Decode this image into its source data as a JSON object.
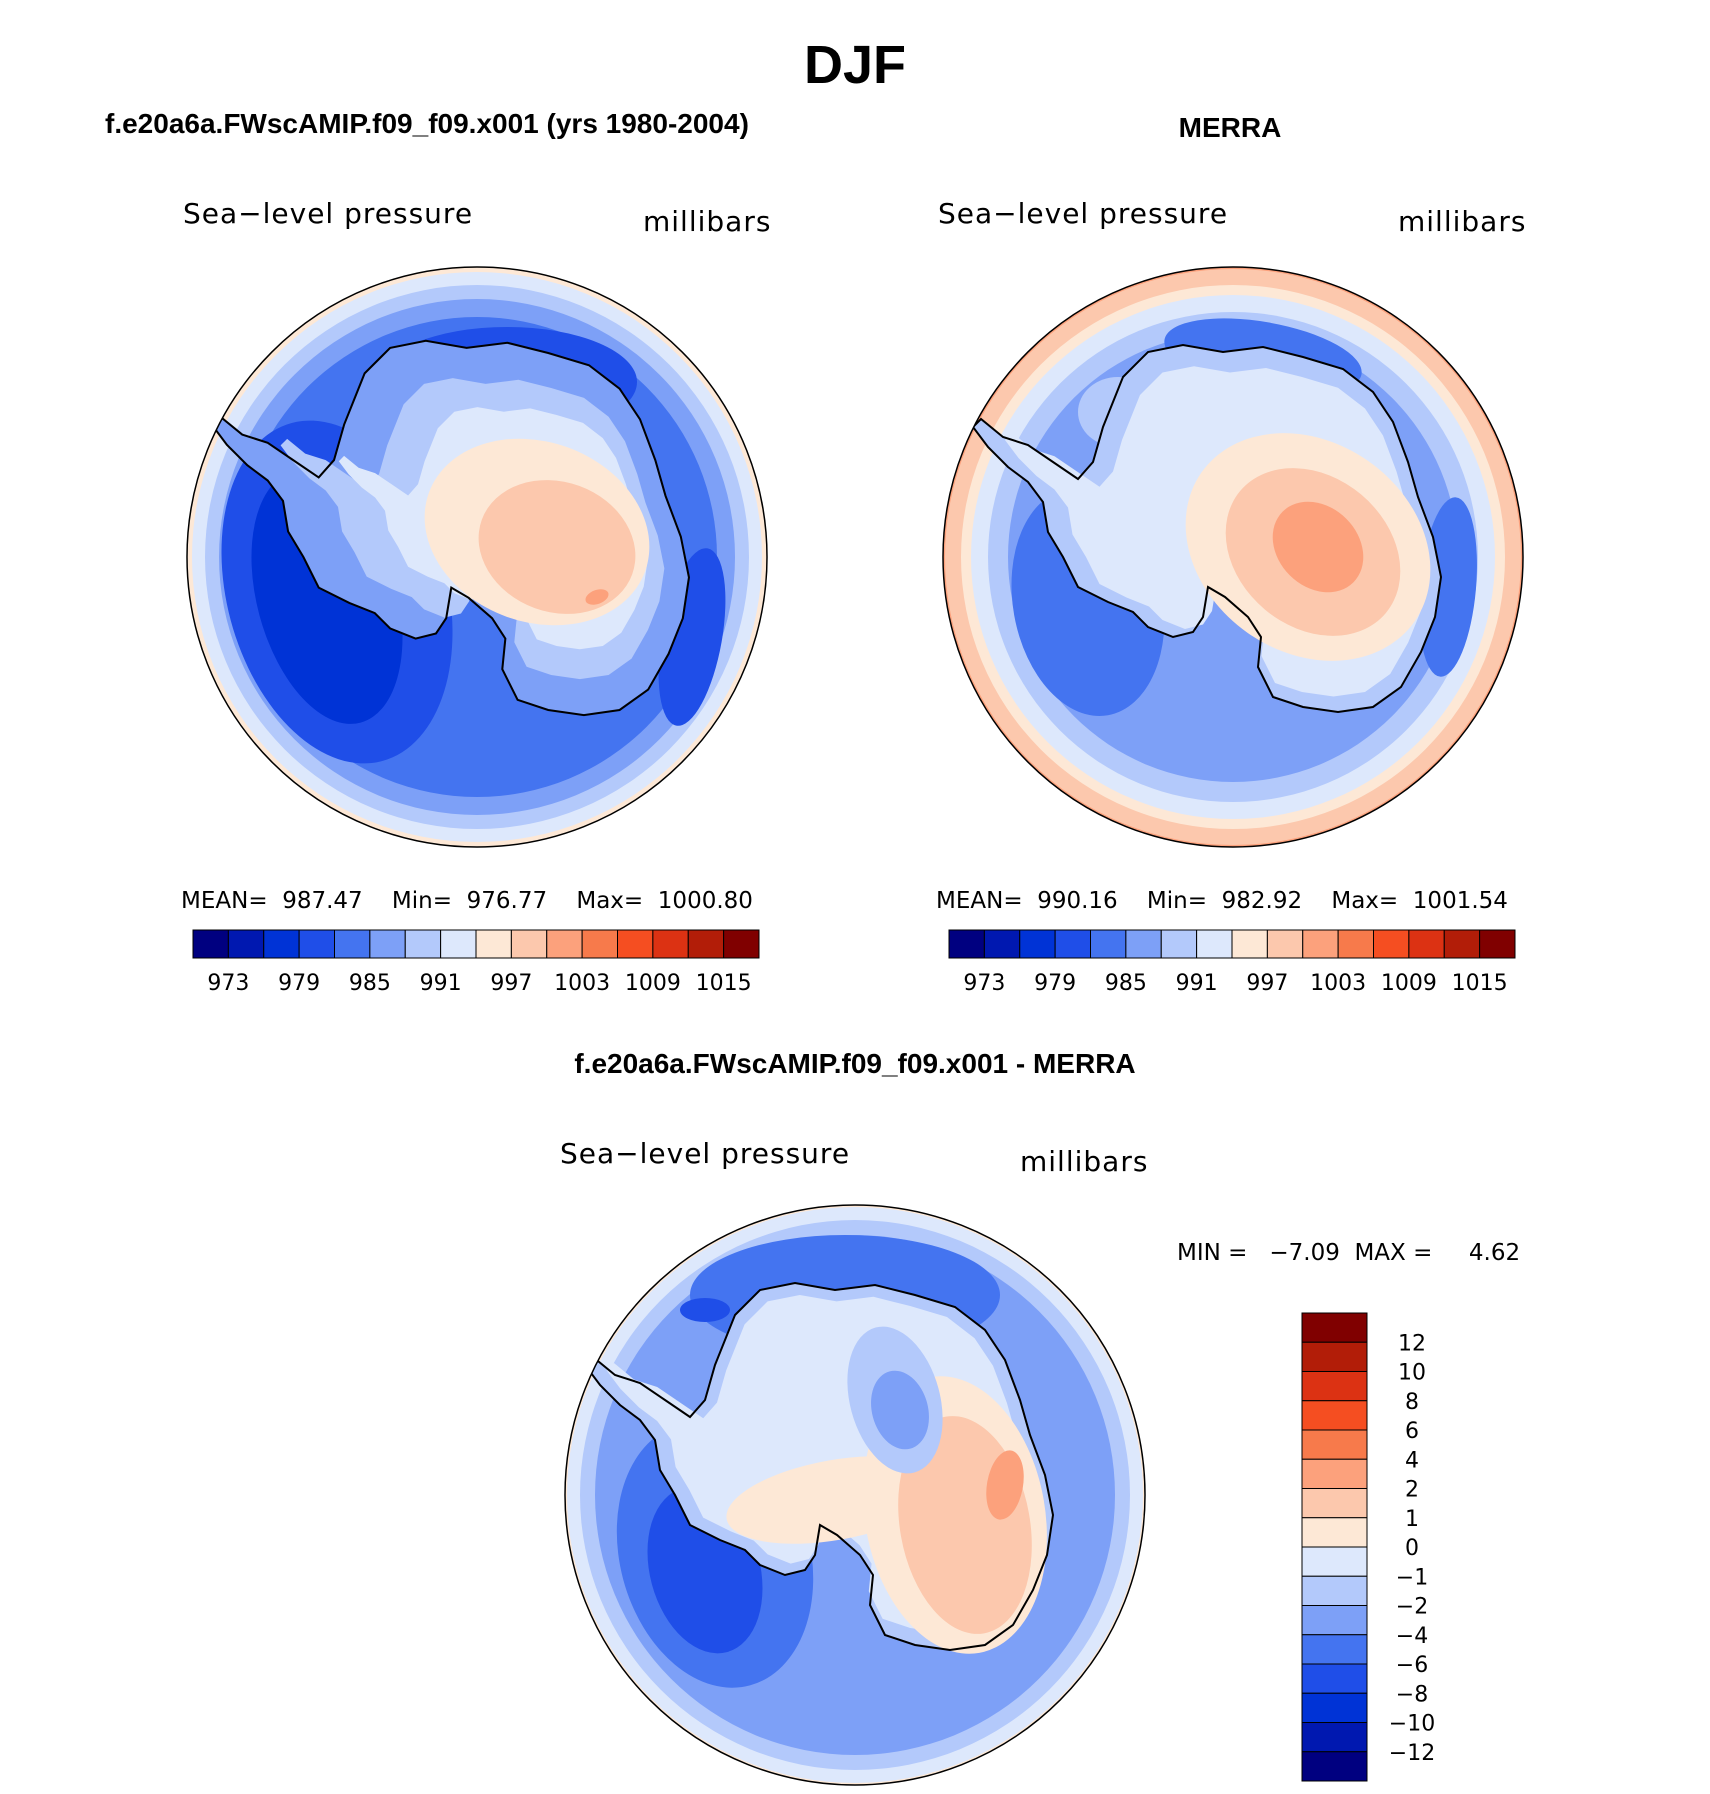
{
  "title": "DJF",
  "palette": {
    "abs": [
      "#000080",
      "#0018b0",
      "#0033d6",
      "#1f4ee8",
      "#4474f0",
      "#7da0f7",
      "#b3c9fb",
      "#dde8fc",
      "#fde8d6",
      "#fcc8ad",
      "#fca17c",
      "#f77a4b",
      "#f54e21",
      "#dc3213",
      "#b21d08",
      "#800000"
    ],
    "diff": [
      "#000080",
      "#0018b0",
      "#0033d6",
      "#1f4ee8",
      "#4474f0",
      "#7da0f7",
      "#b3c9fb",
      "#dde8fc",
      "#fde8d6",
      "#fcc8ad",
      "#fca17c",
      "#f77a4b",
      "#f54e21",
      "#dc3213",
      "#b21d08",
      "#800000"
    ],
    "coast": "#000000"
  },
  "chart_data": [
    {
      "type": "heatmap",
      "title": "f.e20a6a.FWscAMIP.f09_f09.x001 (yrs 1980-2004)",
      "variable": "Sea−level pressure",
      "units": "millibars",
      "stats": "MEAN=  987.47    Min=  976.77    Max=  1000.80",
      "mean": 987.47,
      "min": 976.77,
      "max": 1000.8,
      "levels": [
        973,
        976,
        979,
        982,
        985,
        988,
        991,
        994,
        997,
        1000,
        1003,
        1006,
        1009,
        1012,
        1015
      ],
      "tick_labels": [
        "973",
        "979",
        "985",
        "991",
        "997",
        "1003",
        "1009",
        "1015"
      ]
    },
    {
      "type": "heatmap",
      "title": "MERRA",
      "variable": "Sea−level pressure",
      "units": "millibars",
      "stats": "MEAN=  990.16    Min=  982.92    Max=  1001.54",
      "mean": 990.16,
      "min": 982.92,
      "max": 1001.54,
      "levels": [
        973,
        976,
        979,
        982,
        985,
        988,
        991,
        994,
        997,
        1000,
        1003,
        1006,
        1009,
        1012,
        1015
      ],
      "tick_labels": [
        "973",
        "979",
        "985",
        "991",
        "997",
        "1003",
        "1009",
        "1015"
      ]
    },
    {
      "type": "heatmap",
      "title": "f.e20a6a.FWscAMIP.f09_f09.x001 - MERRA",
      "variable": "Sea−level pressure",
      "units": "millibars",
      "stats": "MIN =   −7.09  MAX =     4.62",
      "min": -7.09,
      "max": 4.62,
      "levels": [
        -12,
        -10,
        -8,
        -6,
        -4,
        -2,
        -1,
        0,
        1,
        2,
        4,
        6,
        8,
        10,
        12
      ],
      "tick_labels": [
        "−12",
        "−10",
        "−8",
        "−6",
        "−4",
        "−2",
        "−1",
        "0",
        "1",
        "2",
        "4",
        "6",
        "8",
        "10",
        "12"
      ]
    }
  ]
}
